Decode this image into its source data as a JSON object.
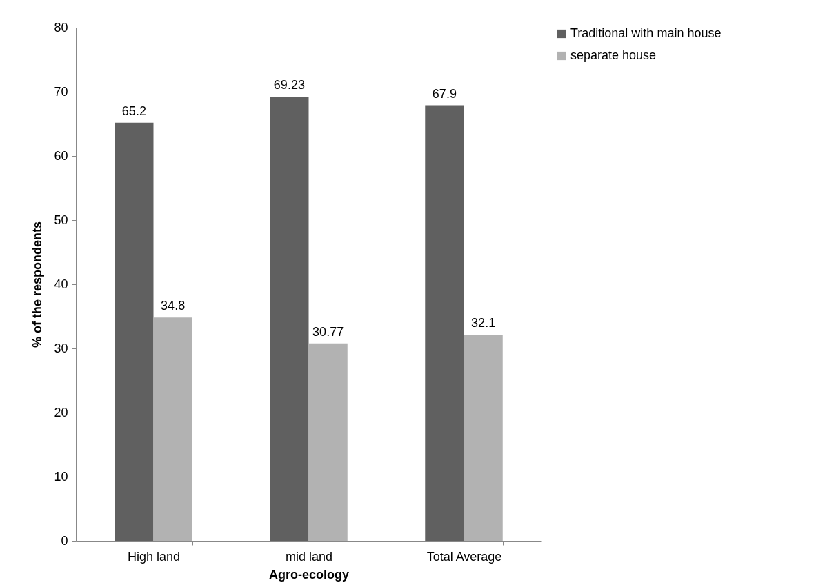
{
  "chart_data": {
    "type": "bar",
    "xlabel": "Agro-ecology",
    "ylabel": "% of the respondents",
    "categories": [
      "High land",
      "mid land",
      "Total Average"
    ],
    "series": [
      {
        "name": "Traditional with main house",
        "color": "#606060",
        "values": [
          65.2,
          69.23,
          67.9
        ]
      },
      {
        "name": "separate house",
        "color": "#b2b2b2",
        "values": [
          34.8,
          30.77,
          32.1
        ]
      }
    ],
    "ylim": [
      0,
      80
    ],
    "yticks": [
      0,
      10,
      20,
      30,
      40,
      50,
      60,
      70,
      80
    ],
    "grid": false,
    "legend": "right",
    "data_labels": true
  }
}
